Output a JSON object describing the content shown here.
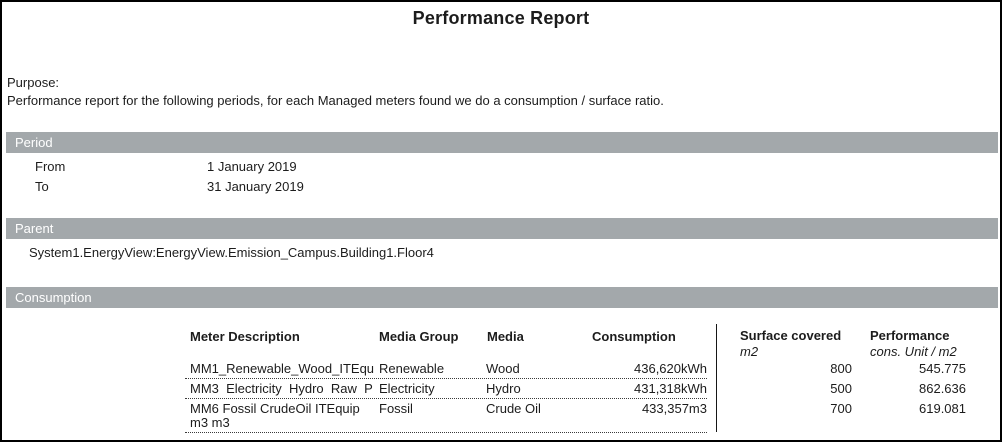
{
  "title": "Performance Report",
  "purpose": {
    "label": "Purpose:",
    "text": "Performance report for the following periods, for each Managed meters found we do a consumption / surface ratio."
  },
  "period": {
    "header": "Period",
    "rows": [
      {
        "label": "From",
        "value": "1 January 2019"
      },
      {
        "label": "To",
        "value": "31 January 2019"
      }
    ]
  },
  "parent": {
    "header": "Parent",
    "path": "System1.EnergyView:EnergyView.Emission_Campus.Building1.Floor4"
  },
  "consumption": {
    "header": "Consumption",
    "columns": {
      "meter": "Meter Description",
      "media_group": "Media Group",
      "media": "Media",
      "consumption": "Consumption",
      "surface": "Surface covered",
      "surface_unit": "m2",
      "performance": "Performance",
      "performance_unit": "cons. Unit / m2"
    },
    "rows": [
      {
        "meter": "MM1_Renewable_Wood_ITEqu",
        "media_group": "Renewable",
        "media": "Wood",
        "consumption": "436,620kWh",
        "surface": "800",
        "performance": "545.775"
      },
      {
        "meter": "MM3  Electricity  Hydro  Raw  P",
        "media_group": "Electricity",
        "media": "Hydro",
        "consumption": "431,318kWh",
        "surface": "500",
        "performance": "862.636"
      },
      {
        "meter": "MM6 Fossil CrudeOil ITEquip m3 m3",
        "media_group": "Fossil",
        "media": "Crude Oil",
        "consumption": "433,357m3",
        "surface": "700",
        "performance": "619.081"
      }
    ]
  },
  "colors": {
    "section_bar": "#a3a8ab",
    "section_bar_text": "#ffffff",
    "page_border": "#000000"
  }
}
